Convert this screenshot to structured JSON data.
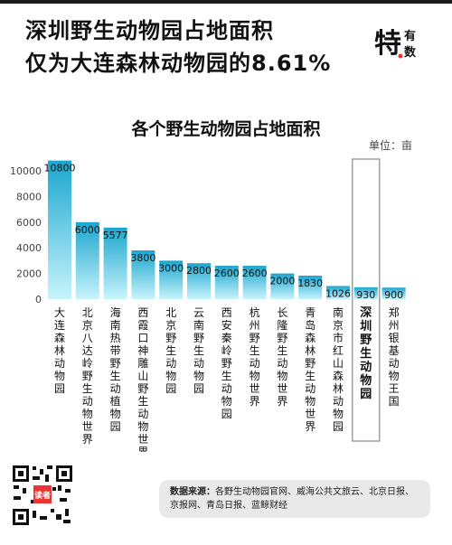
{
  "headline": {
    "line1": "深圳野生动物园占地面积",
    "line2": "仅为大连森林动物园的8.61%"
  },
  "brand": {
    "logo_text": "特有数"
  },
  "chart_data": {
    "type": "bar",
    "title": "各个野生动物园占地面积",
    "unit": "单位：亩",
    "categories": [
      "大连森林动物园",
      "北京八达岭野生动物世界",
      "海南热带野生动植物园",
      "西霞口神雕山野生动物世界",
      "北京野生动物园",
      "云南野生动物园",
      "西安秦岭野生动物园",
      "杭州野生动物世界",
      "长隆野生动物世界",
      "青岛森林野生动物世界",
      "南京市红山森林动物园",
      "深圳野生动物园",
      "郑州银基动物王国"
    ],
    "values": [
      10800,
      6000,
      5577,
      3800,
      3000,
      2800,
      2600,
      2600,
      2000,
      1830,
      1026,
      930,
      900
    ],
    "value_labels": [
      "10800",
      "6000",
      "5577",
      "3800",
      "3000",
      "2800",
      "2600",
      "2600",
      "2000",
      "1830",
      "1026",
      "930",
      "900"
    ],
    "highlight": "深圳野生动物园",
    "ylim": [
      0,
      10000
    ],
    "yticks": [
      0,
      2000,
      4000,
      6000,
      8000,
      10000
    ],
    "grid": false,
    "bar_color_top": "#1ba6cf",
    "bar_color_bottom": "#c8f4fb",
    "highlight_box_color": "#888888"
  },
  "footer": {
    "source_label": "数据来源：",
    "source_text": "各野生动物园官网、威海公共文旅云、北京日报、京报网、青岛日报、蓝鲸财经",
    "qr_badge": "读者"
  }
}
